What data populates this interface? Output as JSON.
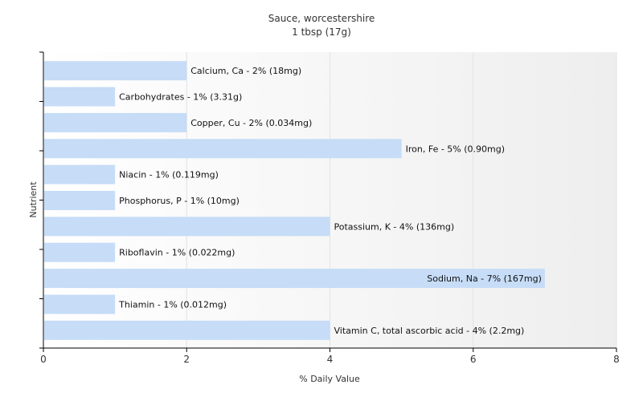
{
  "chart_data": {
    "type": "bar",
    "orientation": "horizontal",
    "title": "Sauce, worcestershire",
    "subtitle": "1 tbsp (17g)",
    "xlabel": "% Daily Value",
    "ylabel": "Nutrient",
    "xlim": [
      0,
      8
    ],
    "xticks": [
      0,
      2,
      4,
      6,
      8
    ],
    "grid": true,
    "bar_color": "#c6dcf7",
    "categories": [
      "Calcium, Ca",
      "Carbohydrates",
      "Copper, Cu",
      "Iron, Fe",
      "Niacin",
      "Phosphorus, P",
      "Potassium, K",
      "Riboflavin",
      "Sodium, Na",
      "Thiamin",
      "Vitamin C, total ascorbic acid"
    ],
    "values": [
      2,
      1,
      2,
      5,
      1,
      1,
      4,
      1,
      7,
      1,
      4
    ],
    "labels": [
      "Calcium, Ca - 2% (18mg)",
      "Carbohydrates - 1% (3.31g)",
      "Copper, Cu - 2% (0.034mg)",
      "Iron, Fe - 5% (0.90mg)",
      "Niacin - 1% (0.119mg)",
      "Phosphorus, P - 1% (10mg)",
      "Potassium, K - 4% (136mg)",
      "Riboflavin - 1% (0.022mg)",
      "Sodium, Na - 7% (167mg)",
      "Thiamin - 1% (0.012mg)",
      "Vitamin C, total ascorbic acid - 4% (2.2mg)"
    ]
  }
}
